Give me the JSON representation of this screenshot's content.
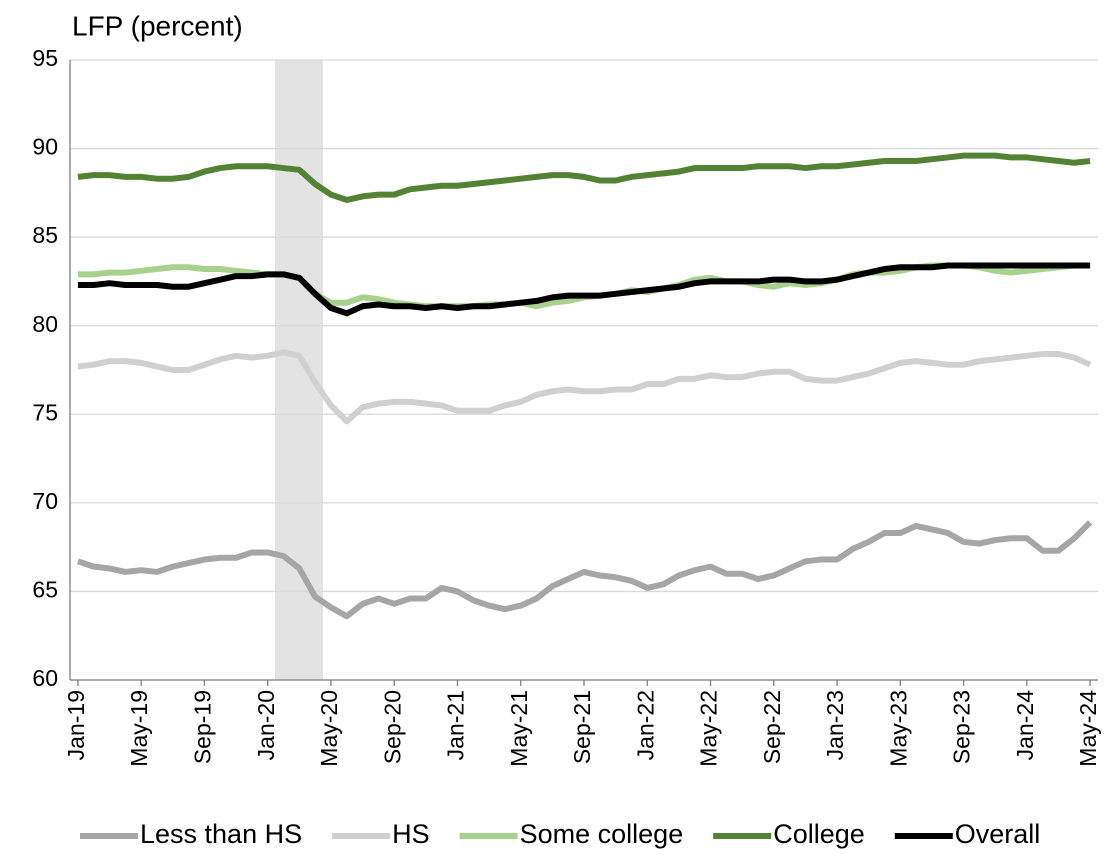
{
  "chart_data": {
    "type": "line",
    "title": "LFP (percent)",
    "categories": [
      "Jan-19",
      null,
      null,
      null,
      "May-19",
      null,
      null,
      null,
      "Sep-19",
      null,
      null,
      null,
      "Jan-20",
      null,
      null,
      null,
      "May-20",
      null,
      null,
      null,
      "Sep-20",
      null,
      null,
      null,
      "Jan-21",
      null,
      null,
      null,
      "May-21",
      null,
      null,
      null,
      "Sep-21",
      null,
      null,
      null,
      "Jan-22",
      null,
      null,
      null,
      "May-22",
      null,
      null,
      null,
      "Sep-22",
      null,
      null,
      null,
      "Jan-23",
      null,
      null,
      null,
      "May-23",
      null,
      null,
      null,
      "Sep-23",
      null,
      null,
      null,
      "Jan-24",
      null,
      null,
      null,
      "May-24"
    ],
    "series": [
      {
        "name": "Less than HS",
        "color": "#a6a6a6",
        "values": [
          66.7,
          66.4,
          66.3,
          66.1,
          66.2,
          66.1,
          66.4,
          66.6,
          66.8,
          66.9,
          66.9,
          67.2,
          67.2,
          67.0,
          66.3,
          64.7,
          64.1,
          63.6,
          64.3,
          64.6,
          64.3,
          64.6,
          64.6,
          65.2,
          65.0,
          64.5,
          64.2,
          64.0,
          64.2,
          64.6,
          65.3,
          65.7,
          66.1,
          65.9,
          65.8,
          65.6,
          65.2,
          65.4,
          65.9,
          66.2,
          66.4,
          66.0,
          66.0,
          65.7,
          65.9,
          66.3,
          66.7,
          66.8,
          66.8,
          67.4,
          67.8,
          68.3,
          68.3,
          68.7,
          68.5,
          68.3,
          67.8,
          67.7,
          67.9,
          68.0,
          68.0,
          67.3,
          67.3,
          68.0,
          68.9
        ]
      },
      {
        "name": "HS",
        "color": "#d0d0d0",
        "values": [
          77.7,
          77.8,
          78.0,
          78.0,
          77.9,
          77.7,
          77.5,
          77.5,
          77.8,
          78.1,
          78.3,
          78.2,
          78.3,
          78.5,
          78.3,
          76.8,
          75.5,
          74.6,
          75.4,
          75.6,
          75.7,
          75.7,
          75.6,
          75.5,
          75.2,
          75.2,
          75.2,
          75.5,
          75.7,
          76.1,
          76.3,
          76.4,
          76.3,
          76.3,
          76.4,
          76.4,
          76.7,
          76.7,
          77.0,
          77.0,
          77.2,
          77.1,
          77.1,
          77.3,
          77.4,
          77.4,
          77.0,
          76.9,
          76.9,
          77.1,
          77.3,
          77.6,
          77.9,
          78.0,
          77.9,
          77.8,
          77.8,
          78.0,
          78.1,
          78.2,
          78.3,
          78.4,
          78.4,
          78.2,
          77.8
        ]
      },
      {
        "name": "Some college",
        "color": "#a9d18e",
        "values": [
          82.9,
          82.9,
          83.0,
          83.0,
          83.1,
          83.2,
          83.3,
          83.3,
          83.2,
          83.2,
          83.1,
          83.0,
          82.9,
          82.9,
          82.7,
          81.8,
          81.3,
          81.3,
          81.6,
          81.5,
          81.3,
          81.2,
          81.1,
          81.1,
          81.1,
          81.1,
          81.2,
          81.2,
          81.3,
          81.1,
          81.3,
          81.4,
          81.6,
          81.7,
          81.8,
          82.0,
          81.9,
          82.1,
          82.3,
          82.6,
          82.7,
          82.5,
          82.5,
          82.3,
          82.2,
          82.4,
          82.3,
          82.4,
          82.6,
          82.9,
          83.0,
          83.0,
          83.1,
          83.3,
          83.4,
          83.4,
          83.4,
          83.3,
          83.1,
          83.0,
          83.1,
          83.2,
          83.3,
          83.4,
          83.4
        ]
      },
      {
        "name": "College",
        "color": "#548235",
        "values": [
          88.4,
          88.5,
          88.5,
          88.4,
          88.4,
          88.3,
          88.3,
          88.4,
          88.7,
          88.9,
          89.0,
          89.0,
          89.0,
          88.9,
          88.8,
          88.0,
          87.4,
          87.1,
          87.3,
          87.4,
          87.4,
          87.7,
          87.8,
          87.9,
          87.9,
          88.0,
          88.1,
          88.2,
          88.3,
          88.4,
          88.5,
          88.5,
          88.4,
          88.2,
          88.2,
          88.4,
          88.5,
          88.6,
          88.7,
          88.9,
          88.9,
          88.9,
          88.9,
          89.0,
          89.0,
          89.0,
          88.9,
          89.0,
          89.0,
          89.1,
          89.2,
          89.3,
          89.3,
          89.3,
          89.4,
          89.5,
          89.6,
          89.6,
          89.6,
          89.5,
          89.5,
          89.4,
          89.3,
          89.2,
          89.3
        ]
      },
      {
        "name": "Overall",
        "color": "#000000",
        "values": [
          82.3,
          82.3,
          82.4,
          82.3,
          82.3,
          82.3,
          82.2,
          82.2,
          82.4,
          82.6,
          82.8,
          82.8,
          82.9,
          82.9,
          82.7,
          81.8,
          81.0,
          80.7,
          81.1,
          81.2,
          81.1,
          81.1,
          81.0,
          81.1,
          81.0,
          81.1,
          81.1,
          81.2,
          81.3,
          81.4,
          81.6,
          81.7,
          81.7,
          81.7,
          81.8,
          81.9,
          82.0,
          82.1,
          82.2,
          82.4,
          82.5,
          82.5,
          82.5,
          82.5,
          82.6,
          82.6,
          82.5,
          82.5,
          82.6,
          82.8,
          83.0,
          83.2,
          83.3,
          83.3,
          83.3,
          83.4,
          83.4,
          83.4,
          83.4,
          83.4,
          83.4,
          83.4,
          83.4,
          83.4,
          83.4
        ]
      }
    ],
    "ylim": [
      60,
      95
    ],
    "yticks": [
      60,
      65,
      70,
      75,
      80,
      85,
      90,
      95
    ],
    "grid": true
  }
}
